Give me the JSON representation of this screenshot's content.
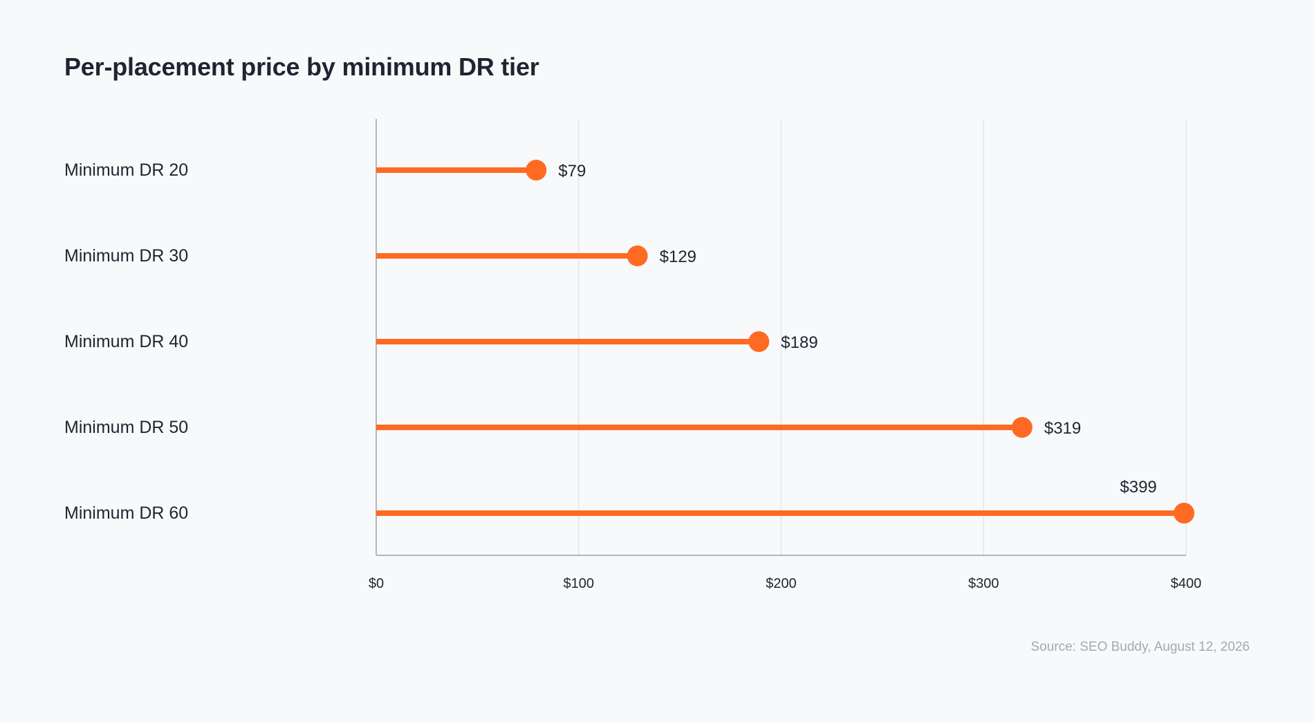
{
  "chart_data": {
    "type": "bar",
    "style": "lollipop",
    "orientation": "horizontal",
    "title": "Per-placement price by minimum DR tier",
    "categories": [
      "Minimum DR 20",
      "Minimum DR 30",
      "Minimum DR 40",
      "Minimum DR 50",
      "Minimum DR 60"
    ],
    "values": [
      79,
      129,
      189,
      319,
      399
    ],
    "value_labels": [
      "$79",
      "$129",
      "$189",
      "$319",
      "$399"
    ],
    "xlim": [
      0,
      400
    ],
    "x_ticks": [
      0,
      100,
      200,
      300,
      400
    ],
    "x_tick_labels": [
      "$0",
      "$100",
      "$200",
      "$300",
      "$400"
    ],
    "grid": "vertical",
    "legend": "none",
    "source": "Source: SEO Buddy, August 12, 2026"
  },
  "colors": {
    "accent": "#ff6a22",
    "text": "#1f2430",
    "grid": "#e3e5ea",
    "axis": "#9aa0aa",
    "source": "#a4a8b1",
    "background": "#f8f9fb"
  }
}
